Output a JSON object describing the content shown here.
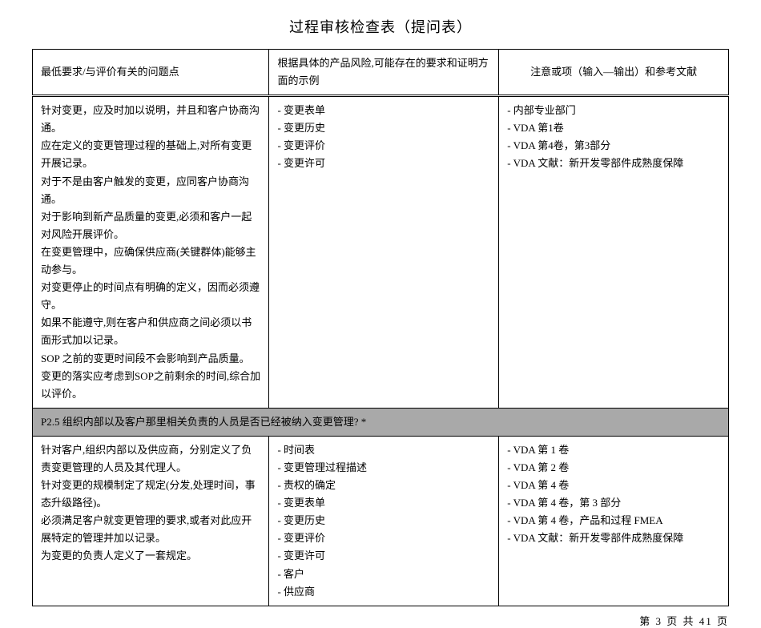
{
  "title": "过程审核检查表（提问表）",
  "headers": {
    "col1": "最低要求/与评价有关的问题点",
    "col2": "根据具体的产品风险,可能存在的要求和证明方面的示例",
    "col3": "注意或项（输入—输出）和参考文献"
  },
  "row1": {
    "col1_lines": [
      "针对变更，应及时加以说明，并且和客户协商沟通。",
      "应在定义的变更管理过程的基础上,对所有变更开展记录。",
      "对于不是由客户触发的变更，应同客户协商沟通。",
      "对于影响到新产品质量的变更,必须和客户一起对风险开展评价。",
      "在变更管理中，应确保供应商(关键群体)能够主动参与。",
      "对变更停止的时间点有明确的定义，因而必须遵守。",
      "如果不能遵守,则在客户和供应商之间必须以书面形式加以记录。",
      "SOP 之前的变更时间段不会影响到产品质量。",
      "变更的落实应考虑到SOP之前剩余的时间,综合加以评价。"
    ],
    "col2_items": [
      "- 变更表单",
      "- 变更历史",
      "- 变更评价",
      "- 变更许可"
    ],
    "col3_items": [
      "- 内部专业部门",
      "",
      "- VDA 第1卷",
      "- VDA 第4卷，第3部分",
      "- VDA 文献：新开发零部件成熟度保障"
    ]
  },
  "section_header": "P2.5 组织内部以及客户那里相关负责的人员是否已经被纳入变更管理? *",
  "row2": {
    "col1_lines": [
      "针对客户,组织内部以及供应商，分别定义了负责变更管理的人员及其代理人。",
      "针对变更的规模制定了规定(分发,处理时间，事态升级路径)。",
      "必须满足客户就变更管理的要求,或者对此应开展特定的管理并加以记录。",
      "为变更的负责人定义了一套规定。"
    ],
    "col2_items": [
      "- 时间表",
      "- 变更管理过程描述",
      "- 责权的确定",
      "- 变更表单",
      "- 变更历史",
      "- 变更评价",
      "- 变更许可",
      "- 客户",
      "- 供应商"
    ],
    "col3_items": [
      "- VDA 第 1 卷",
      "- VDA 第 2 卷",
      "- VDA 第 4 卷",
      "- VDA 第 4 卷，第 3 部分",
      "- VDA 第 4 卷，产品和过程 FMEA",
      "- VDA 文献：新开发零部件成熟度保障"
    ]
  },
  "footer": "第 3 页 共 41 页"
}
